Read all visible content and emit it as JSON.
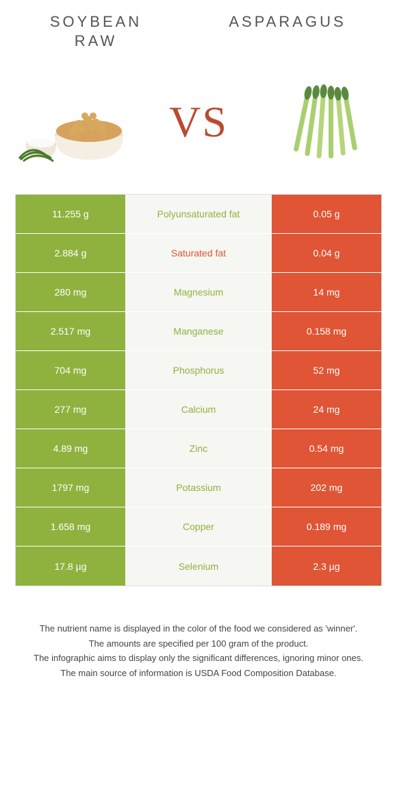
{
  "foods": {
    "left": {
      "title": "Soybean\nraw",
      "color": "#8fb23e",
      "image": "soybean"
    },
    "right": {
      "title": "Asparagus",
      "color": "#df5535",
      "image": "asparagus"
    }
  },
  "vs_text": "VS",
  "vs_color": "#ba4a2f",
  "mid_bg": "#f6f6f3",
  "nutrients": [
    {
      "name": "Polyunsaturated fat",
      "left": "11.255 g",
      "right": "0.05 g",
      "winner": "left"
    },
    {
      "name": "Saturated fat",
      "left": "2.884 g",
      "right": "0.04 g",
      "winner": "right"
    },
    {
      "name": "Magnesium",
      "left": "280 mg",
      "right": "14 mg",
      "winner": "left"
    },
    {
      "name": "Manganese",
      "left": "2.517 mg",
      "right": "0.158 mg",
      "winner": "left"
    },
    {
      "name": "Phosphorus",
      "left": "704 mg",
      "right": "52 mg",
      "winner": "left"
    },
    {
      "name": "Calcium",
      "left": "277 mg",
      "right": "24 mg",
      "winner": "left"
    },
    {
      "name": "Zinc",
      "left": "4.89 mg",
      "right": "0.54 mg",
      "winner": "left"
    },
    {
      "name": "Potassium",
      "left": "1797 mg",
      "right": "202 mg",
      "winner": "left"
    },
    {
      "name": "Copper",
      "left": "1.658 mg",
      "right": "0.189 mg",
      "winner": "left"
    },
    {
      "name": "Selenium",
      "left": "17.8 µg",
      "right": "2.3 µg",
      "winner": "left"
    }
  ],
  "footnotes": [
    "The nutrient name is displayed in the color of the food we considered as 'winner'.",
    "The amounts are specified per 100 gram of the product.",
    "The infographic aims to display only the significant differences, ignoring minor ones.",
    "The main source of information is USDA Food Composition Database."
  ]
}
